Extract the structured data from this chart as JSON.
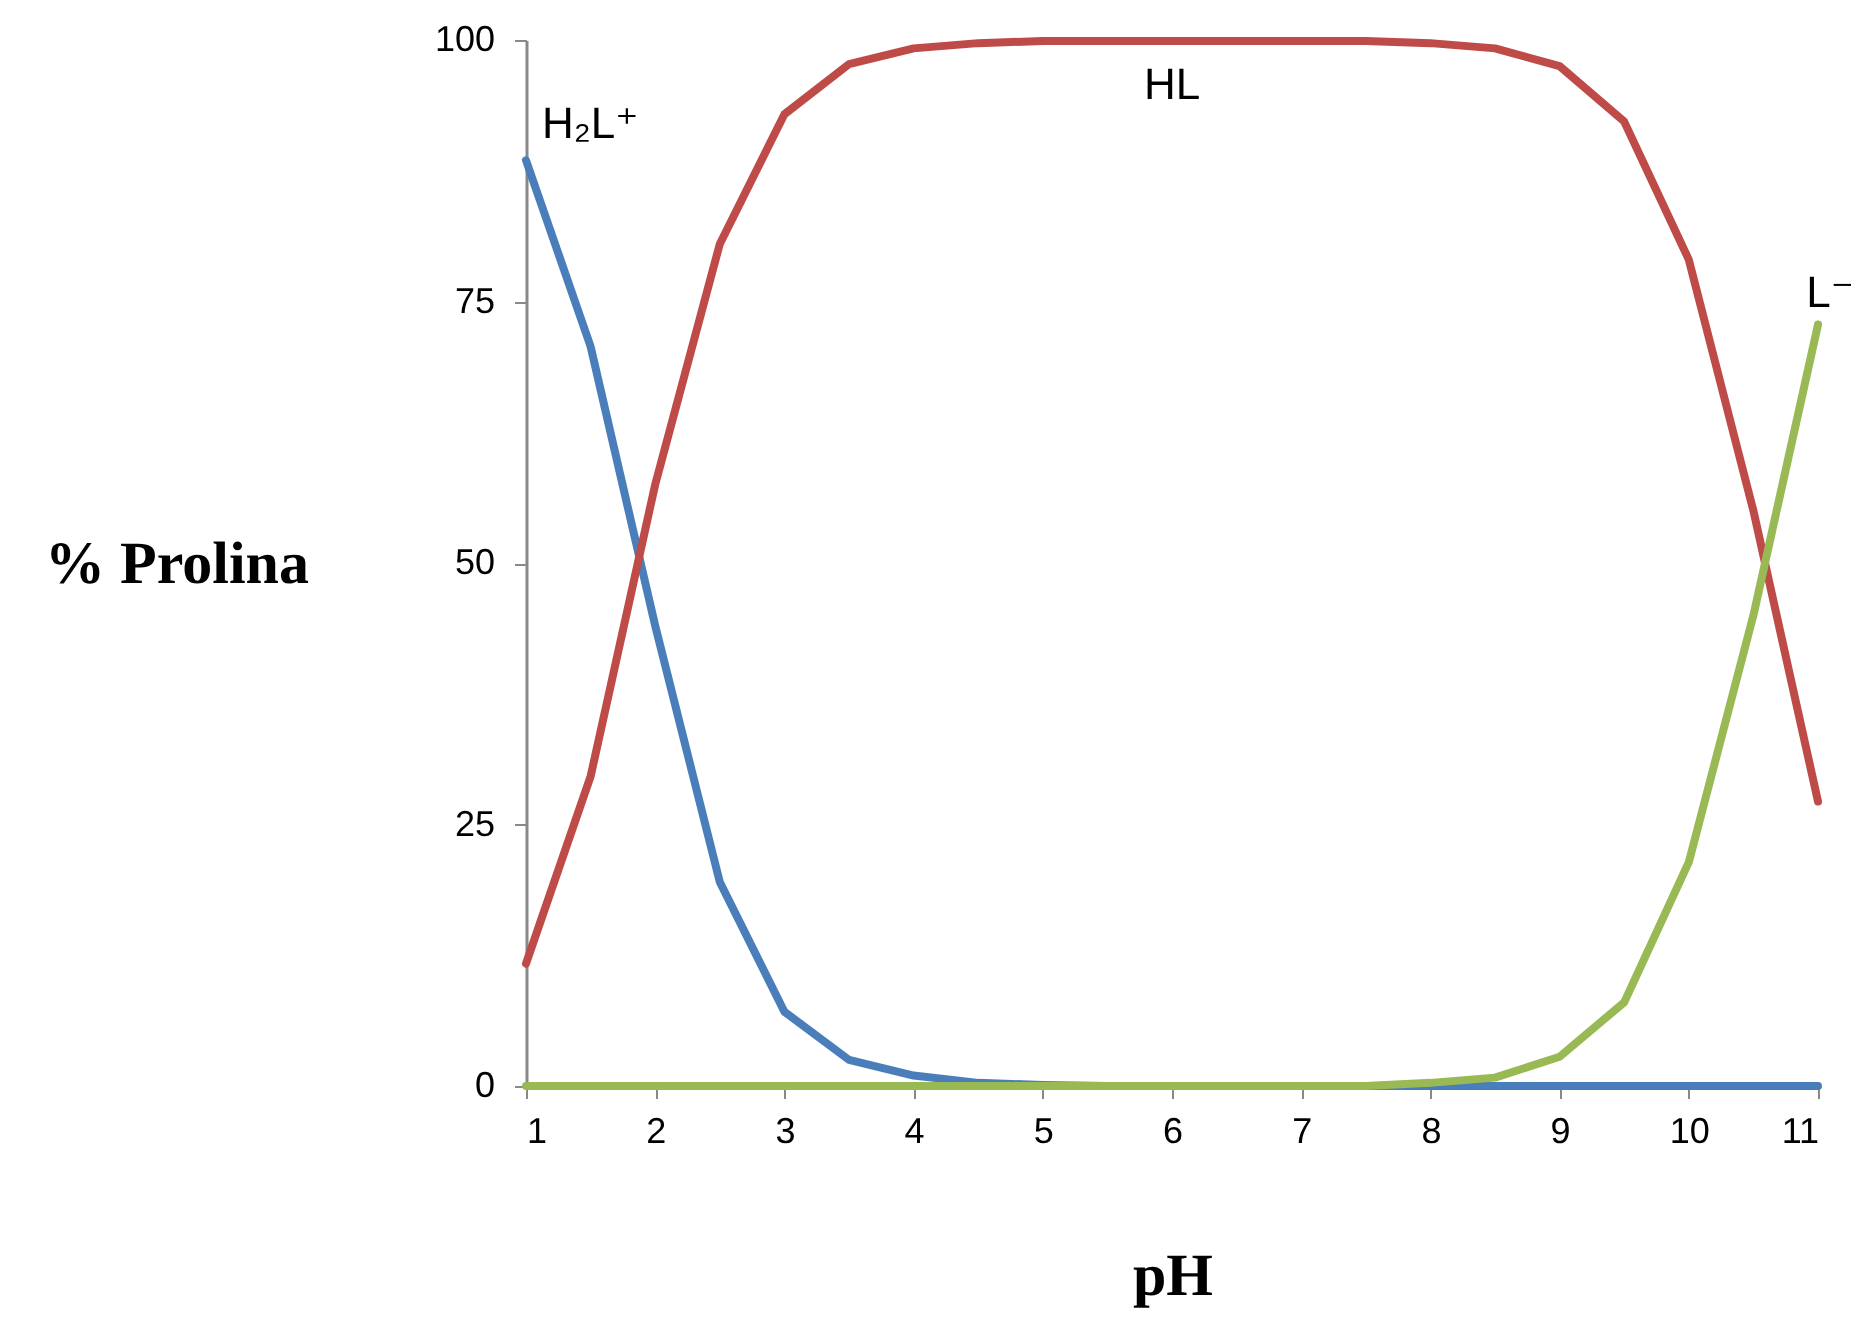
{
  "chart_data": {
    "type": "line",
    "xlabel": "pH",
    "ylabel": "% Prolina",
    "x": [
      1,
      1.5,
      2,
      2.5,
      3,
      3.5,
      4,
      4.5,
      5,
      5.5,
      6,
      6.5,
      7,
      7.5,
      8,
      8.5,
      9,
      9.5,
      10,
      10.5,
      11
    ],
    "series": [
      {
        "name": "H₂L⁺",
        "color": "#4a7ebb",
        "values": [
          88.5,
          70.7,
          44,
          19.5,
          7.1,
          2.5,
          1,
          0.3,
          0.1,
          0,
          0,
          0,
          0,
          0,
          0,
          0,
          0,
          0,
          0,
          0,
          0
        ]
      },
      {
        "name": "HL",
        "color": "#be4b48",
        "values": [
          11.7,
          29.6,
          57.5,
          80.5,
          92.9,
          97.7,
          99.2,
          99.7,
          99.9,
          99.9,
          99.9,
          99.9,
          99.9,
          99.9,
          99.7,
          99.2,
          97.5,
          92.2,
          79,
          55,
          27.2
        ]
      },
      {
        "name": "L⁻",
        "color": "#98b954",
        "values": [
          0,
          0,
          0,
          0,
          0,
          0,
          0,
          0,
          0,
          0,
          0,
          0,
          0,
          0,
          0.3,
          0.8,
          2.8,
          8,
          21.4,
          45,
          72.8
        ]
      }
    ],
    "xlim": [
      1,
      11
    ],
    "xticks": [
      1,
      2,
      3,
      4,
      5,
      6,
      7,
      8,
      9,
      10,
      11
    ],
    "ylim": [
      0,
      100
    ],
    "yticks": [
      0,
      25,
      50,
      75,
      100
    ],
    "line_style": "solid"
  }
}
